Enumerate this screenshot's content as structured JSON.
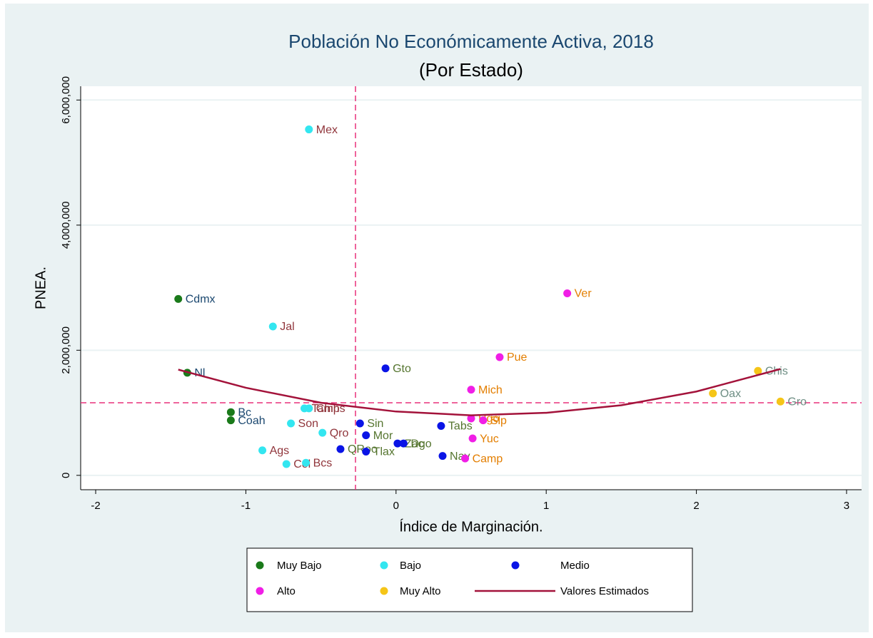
{
  "chart_data": {
    "type": "scatter",
    "title": "Población No Económicamente Activa, 2018",
    "subtitle": "(Por Estado)",
    "x_label": "Índice de Marginación.",
    "y_label": "PNEA.",
    "xlim": [
      -2.1,
      3.1
    ],
    "xticks": [
      -2,
      -1,
      0,
      1,
      2,
      3
    ],
    "ylim": [
      -230000,
      6220000
    ],
    "yticks": [
      0,
      {
        "value": 2000000,
        "label": "2,000,000"
      },
      {
        "value": 4000000,
        "label": "4,000,000"
      },
      {
        "value": 6000000,
        "label": "6,000,000"
      }
    ],
    "grid": true,
    "xline": -0.27,
    "yline": 1160000,
    "series": [
      {
        "name": "Muy Bajo",
        "type": "scatter",
        "color": "#1a7a1a",
        "label_color": "#1a476f",
        "labels": [
          "Cdmx",
          "Nl",
          "Bc",
          "Coah"
        ],
        "x": [
          -1.45,
          -1.39,
          -1.1,
          -1.1
        ],
        "values": [
          2820000,
          1640000,
          1010000,
          880000
        ]
      },
      {
        "name": "Bajo",
        "type": "scatter",
        "color": "#33e6f0",
        "label_color": "#90353b",
        "labels": [
          "Mex",
          "Jal",
          "Tamps",
          "Chih",
          "Son",
          "Qro",
          "Ags",
          "Col",
          "Bcs"
        ],
        "x": [
          -0.58,
          -0.82,
          -0.61,
          -0.58,
          -0.7,
          -0.49,
          -0.89,
          -0.73,
          -0.6
        ],
        "values": [
          5530000,
          2380000,
          1070000,
          1070000,
          830000,
          680000,
          400000,
          180000,
          200000
        ]
      },
      {
        "name": "Medio",
        "type": "scatter",
        "color": "#0a14e6",
        "label_color": "#55752f",
        "labels": [
          "Gto",
          "Sin",
          "Mor",
          "QRoo",
          "Tlax",
          "Zac",
          "Dgo",
          "Tabs",
          "Nay"
        ],
        "x": [
          -0.07,
          -0.24,
          -0.2,
          -0.37,
          -0.2,
          0.01,
          0.05,
          0.3,
          0.31
        ],
        "values": [
          1710000,
          830000,
          640000,
          420000,
          380000,
          510000,
          510000,
          790000,
          310000
        ]
      },
      {
        "name": "Alto",
        "type": "scatter",
        "color": "#f01ee6",
        "label_color": "#e37e00",
        "labels": [
          "Ver",
          "Pue",
          "Mich",
          "Hgo",
          "Slp",
          "Yuc",
          "Camp"
        ],
        "x": [
          1.14,
          0.69,
          0.5,
          0.5,
          0.58,
          0.51,
          0.46
        ],
        "values": [
          2910000,
          1890000,
          1370000,
          910000,
          880000,
          590000,
          270000
        ]
      },
      {
        "name": "Muy Alto",
        "type": "scatter",
        "color": "#f5c518",
        "label_color": "#6e8e84",
        "labels": [
          "Chis",
          "Oax",
          "Gro"
        ],
        "x": [
          2.41,
          2.11,
          2.56
        ],
        "values": [
          1670000,
          1310000,
          1180000
        ]
      },
      {
        "name": "Valores Estimados",
        "type": "line",
        "color": "#a3123a",
        "x": [
          -1.45,
          -1,
          -0.5,
          0,
          0.5,
          1,
          1.5,
          2,
          2.56
        ],
        "values": [
          1690000,
          1400000,
          1160000,
          1020000,
          960000,
          1000000,
          1120000,
          1340000,
          1700000
        ]
      }
    ]
  }
}
